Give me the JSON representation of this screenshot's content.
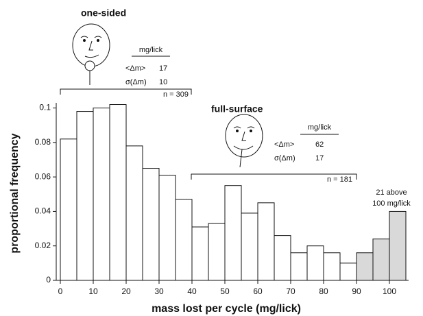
{
  "chart_data": {
    "type": "histogram",
    "x_label": "mass lost per cycle (mg/lick)",
    "y_label": "proportional frequency",
    "bins": [
      0,
      5,
      10,
      15,
      20,
      25,
      30,
      35,
      40,
      45,
      50,
      55,
      60,
      65,
      70,
      75,
      80,
      85,
      90,
      95,
      100,
      105
    ],
    "values": [
      0.082,
      0.098,
      0.1,
      0.102,
      0.078,
      0.065,
      0.061,
      0.047,
      0.031,
      0.033,
      0.055,
      0.039,
      0.045,
      0.026,
      0.016,
      0.02,
      0.016,
      0.01,
      0.016,
      0.024,
      0.04
    ],
    "colors": [
      "#ffffff",
      "#ffffff",
      "#ffffff",
      "#ffffff",
      "#ffffff",
      "#ffffff",
      "#ffffff",
      "#ffffff",
      "#ffffff",
      "#ffffff",
      "#ffffff",
      "#ffffff",
      "#ffffff",
      "#ffffff",
      "#ffffff",
      "#ffffff",
      "#ffffff",
      "#ffffff",
      "#d9d9d9",
      "#d9d9d9",
      "#d9d9d9"
    ],
    "xlim": [
      0,
      105
    ],
    "xticks": [
      0,
      10,
      20,
      30,
      40,
      50,
      60,
      70,
      80,
      90,
      100
    ],
    "ylim": [
      0,
      0.103
    ],
    "yticks": [
      0,
      0.02,
      0.04,
      0.06,
      0.08,
      0.1
    ],
    "grid": false
  },
  "annotations": {
    "one_sided": {
      "label": "one-sided",
      "unit": "mg/lick",
      "mean_label": "<Δm>",
      "mean": "17",
      "sd_label": "σ(Δm)",
      "sd": "10",
      "n": "n = 309"
    },
    "full_surface": {
      "label": "full-surface",
      "unit": "mg/lick",
      "mean_label": "<Δm>",
      "mean": "62",
      "sd_label": "σ(Δm)",
      "sd": "17",
      "n": "n = 181"
    },
    "above_1": "21 above",
    "above_2": "100 mg/lick"
  }
}
